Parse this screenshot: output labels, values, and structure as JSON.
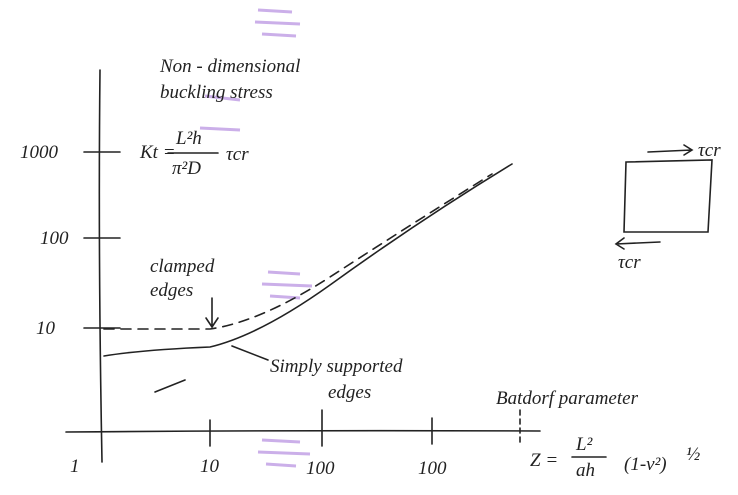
{
  "title": {
    "line1": "Non - dimensional",
    "line2": "buckling stress"
  },
  "formula": {
    "lhs": "Kt =",
    "numerator": "L²h",
    "denominator": "π²D",
    "factor": "τcr"
  },
  "y_axis": {
    "tick_labels": [
      "1000",
      "100",
      "10"
    ]
  },
  "x_axis": {
    "tick_labels": [
      "1",
      "10",
      "100",
      "100"
    ],
    "label": "Batdorf parameter",
    "formula": {
      "lhs": "Z =",
      "numerator": "L²",
      "denominator": "ah",
      "factor": "(1-ν²)",
      "power": "½"
    }
  },
  "annotations": {
    "clamped_1": "clamped",
    "clamped_2": "edges",
    "simply_1": "Simply supported",
    "simply_2": "edges"
  },
  "panel": {
    "top_label": "τcr",
    "bottom_label": "τcr"
  }
}
